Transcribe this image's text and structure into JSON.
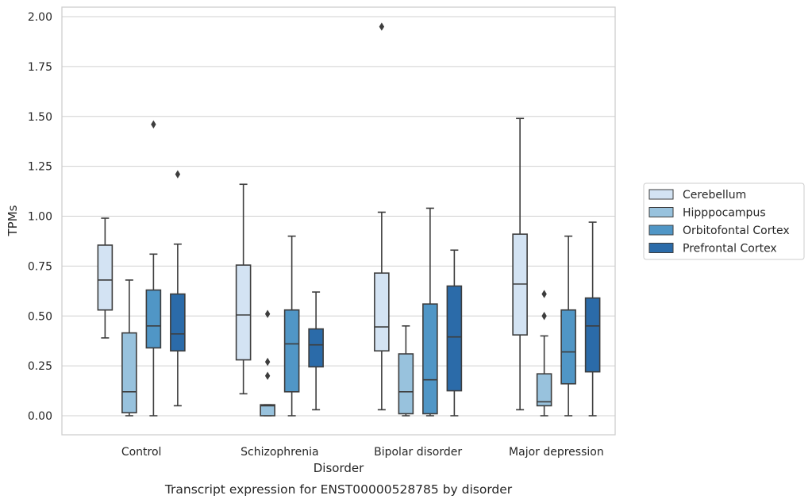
{
  "chart_data": {
    "type": "box",
    "caption": "Transcript expression for ENST00000528785 by disorder",
    "xlabel": "Disorder",
    "ylabel": "TPMs",
    "ylim": [
      -0.1,
      2.05
    ],
    "yticks": [
      "0.00",
      "0.25",
      "0.50",
      "0.75",
      "1.00",
      "1.25",
      "1.50",
      "1.75",
      "2.00"
    ],
    "grid": "horizontal",
    "legend_position": "right",
    "categories": [
      "Control",
      "Schizophrenia",
      "Bipolar disorder",
      "Major depression"
    ],
    "series": [
      {
        "name": "Cerebellum",
        "color": "#d3e3f3",
        "boxes": [
          {
            "whisker_low": 0.39,
            "q1": 0.53,
            "median": 0.68,
            "q3": 0.855,
            "whisker_high": 0.99,
            "outliers": []
          },
          {
            "whisker_low": 0.11,
            "q1": 0.28,
            "median": 0.505,
            "q3": 0.755,
            "whisker_high": 1.16,
            "outliers": []
          },
          {
            "whisker_low": 0.03,
            "q1": 0.325,
            "median": 0.445,
            "q3": 0.715,
            "whisker_high": 1.02,
            "outliers": [
              1.95
            ]
          },
          {
            "whisker_low": 0.03,
            "q1": 0.405,
            "median": 0.66,
            "q3": 0.91,
            "whisker_high": 1.49,
            "outliers": []
          }
        ]
      },
      {
        "name": "Hipppocampus",
        "color": "#98c2dd",
        "boxes": [
          {
            "whisker_low": 0.0,
            "q1": 0.015,
            "median": 0.12,
            "q3": 0.415,
            "whisker_high": 0.68,
            "outliers": []
          },
          {
            "whisker_low": 0.0,
            "q1": 0.0,
            "median": 0.05,
            "q3": 0.055,
            "whisker_high": 0.055,
            "outliers": [
              0.2,
              0.27,
              0.51
            ]
          },
          {
            "whisker_low": 0.0,
            "q1": 0.01,
            "median": 0.12,
            "q3": 0.31,
            "whisker_high": 0.45,
            "outliers": []
          },
          {
            "whisker_low": 0.0,
            "q1": 0.05,
            "median": 0.07,
            "q3": 0.21,
            "whisker_high": 0.4,
            "outliers": [
              0.5,
              0.61
            ]
          }
        ]
      },
      {
        "name": "Orbitofontal Cortex",
        "color": "#5096c6",
        "boxes": [
          {
            "whisker_low": 0.0,
            "q1": 0.34,
            "median": 0.45,
            "q3": 0.63,
            "whisker_high": 0.81,
            "outliers": [
              1.46
            ]
          },
          {
            "whisker_low": 0.0,
            "q1": 0.12,
            "median": 0.36,
            "q3": 0.53,
            "whisker_high": 0.9,
            "outliers": []
          },
          {
            "whisker_low": 0.0,
            "q1": 0.01,
            "median": 0.18,
            "q3": 0.56,
            "whisker_high": 1.04,
            "outliers": []
          },
          {
            "whisker_low": 0.0,
            "q1": 0.16,
            "median": 0.32,
            "q3": 0.53,
            "whisker_high": 0.9,
            "outliers": []
          }
        ]
      },
      {
        "name": "Prefrontal Cortex",
        "color": "#2b6ba9",
        "boxes": [
          {
            "whisker_low": 0.05,
            "q1": 0.325,
            "median": 0.41,
            "q3": 0.61,
            "whisker_high": 0.86,
            "outliers": [
              1.21
            ]
          },
          {
            "whisker_low": 0.03,
            "q1": 0.245,
            "median": 0.355,
            "q3": 0.435,
            "whisker_high": 0.62,
            "outliers": []
          },
          {
            "whisker_low": 0.0,
            "q1": 0.125,
            "median": 0.395,
            "q3": 0.65,
            "whisker_high": 0.83,
            "outliers": []
          },
          {
            "whisker_low": 0.0,
            "q1": 0.22,
            "median": 0.45,
            "q3": 0.59,
            "whisker_high": 0.97,
            "outliers": []
          }
        ]
      }
    ]
  }
}
